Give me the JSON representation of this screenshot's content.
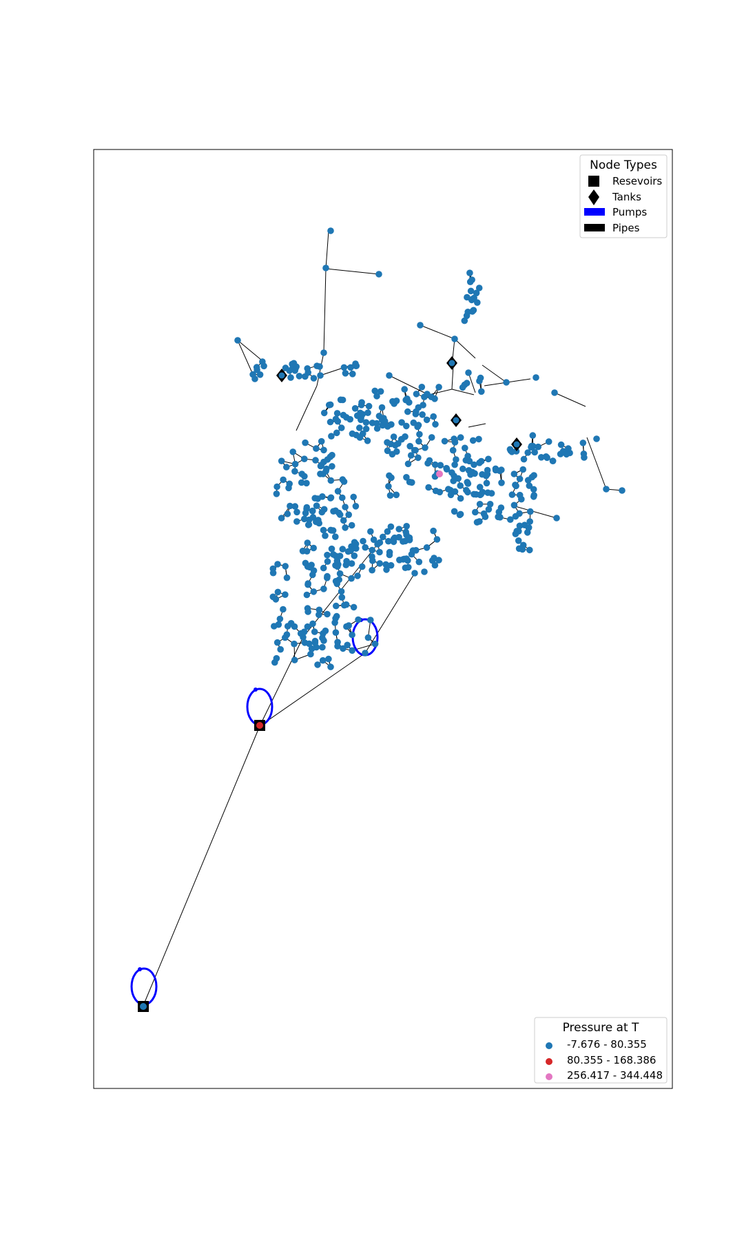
{
  "node_legend": {
    "title": "Node Types",
    "items": [
      {
        "label": "Resevoirs",
        "marker": "square",
        "color": "#000000"
      },
      {
        "label": "Tanks",
        "marker": "diamond",
        "color": "#000000"
      },
      {
        "label": "Pumps",
        "marker": "bar",
        "color": "#0000ff"
      },
      {
        "label": "Pipes",
        "marker": "bar",
        "color": "#000000"
      }
    ]
  },
  "pressure_legend": {
    "title": "Pressure at T",
    "items": [
      {
        "label": "-7.676 - 80.355",
        "color": "#1f77b4"
      },
      {
        "label": "80.355 - 168.386",
        "color": "#d62728"
      },
      {
        "label": "256.417 - 344.448",
        "color": "#e377c2"
      }
    ]
  },
  "colors": {
    "junction": "#1f77b4",
    "pipe": "#000000",
    "pump": "#0000ff",
    "high_pressure": "#d62728",
    "peak_pressure": "#e377c2"
  }
}
